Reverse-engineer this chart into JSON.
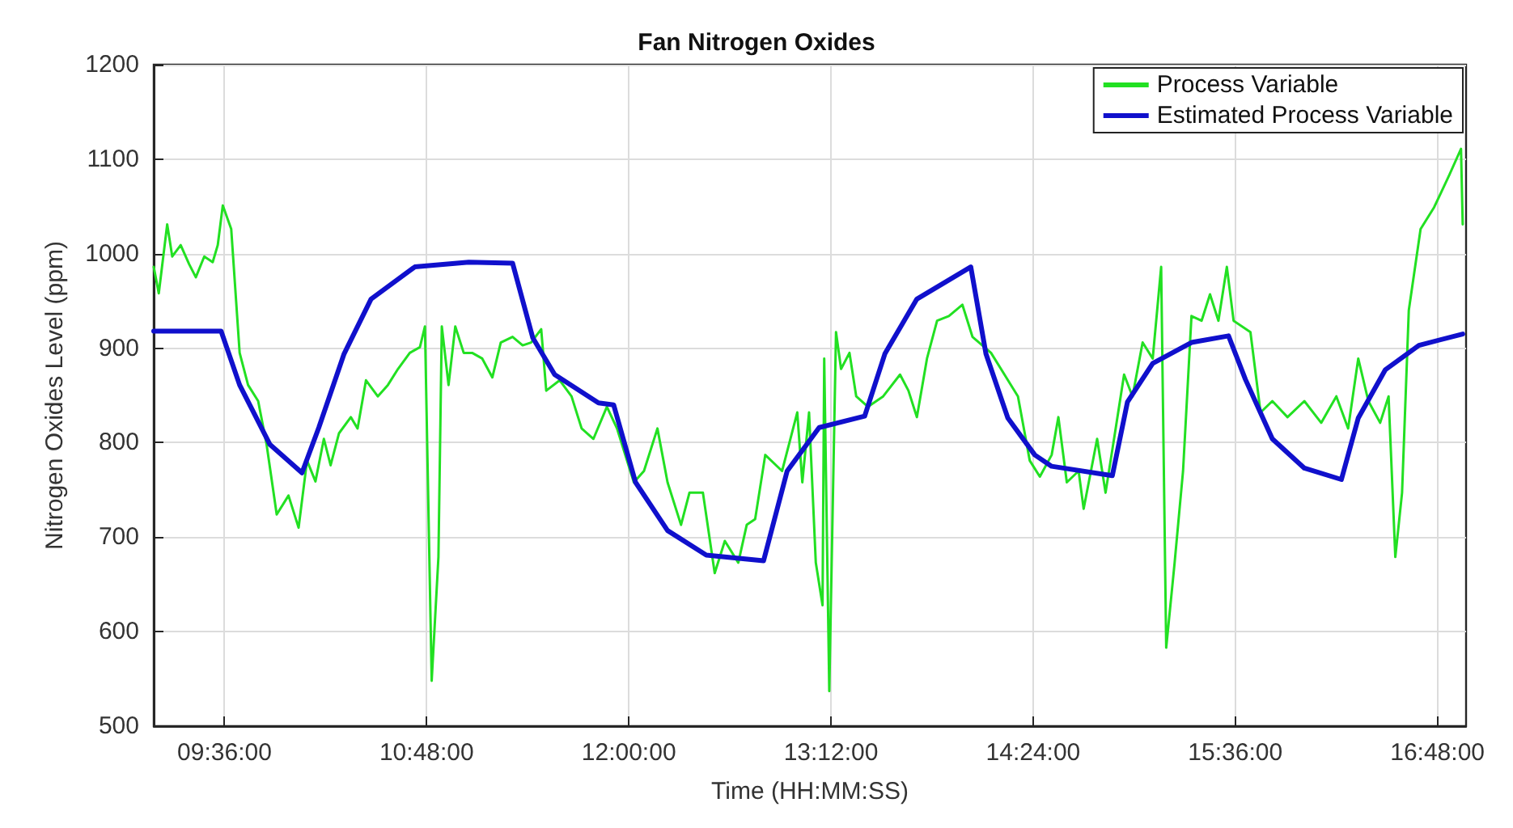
{
  "chart_data": {
    "type": "line",
    "title": "Fan Nitrogen Oxides",
    "xlabel": "Time (HH:MM:SS)",
    "ylabel": "Nitrogen Oxides Level (ppm)",
    "xlim": [
      9.18,
      16.97
    ],
    "ylim": [
      500,
      1200
    ],
    "xticks": [
      {
        "value": 9.6,
        "label": "09:36:00"
      },
      {
        "value": 10.8,
        "label": "10:48:00"
      },
      {
        "value": 12,
        "label": "12:00:00"
      },
      {
        "value": 13.2,
        "label": "13:12:00"
      },
      {
        "value": 14.4,
        "label": "14:24:00"
      },
      {
        "value": 15.6,
        "label": "15:36:00"
      },
      {
        "value": 16.8,
        "label": "16:48:00"
      }
    ],
    "yticks": [
      500,
      600,
      700,
      800,
      900,
      1000,
      1100,
      1200
    ],
    "grid": true,
    "legend": "top right",
    "marker": "none",
    "line_style": "solid",
    "series": [
      {
        "name": "Process Variable",
        "color": "#22e022",
        "x": [
          9.18,
          9.21,
          9.26,
          9.29,
          9.34,
          9.39,
          9.43,
          9.48,
          9.53,
          9.56,
          9.59,
          9.64,
          9.69,
          9.74,
          9.8,
          9.85,
          9.91,
          9.98,
          10.04,
          10.09,
          10.14,
          10.19,
          10.23,
          10.28,
          10.35,
          10.39,
          10.44,
          10.51,
          10.57,
          10.63,
          10.7,
          10.76,
          10.79,
          10.83,
          10.87,
          10.89,
          10.93,
          10.97,
          11.02,
          11.07,
          11.13,
          11.19,
          11.24,
          11.31,
          11.37,
          11.42,
          11.48,
          11.51,
          11.59,
          11.66,
          11.72,
          11.79,
          11.87,
          11.93,
          12.03,
          12.09,
          12.17,
          12.23,
          12.31,
          12.36,
          12.44,
          12.51,
          12.57,
          12.65,
          12.7,
          12.75,
          12.81,
          12.91,
          13.0,
          13.03,
          13.07,
          13.11,
          13.15,
          13.16,
          13.19,
          13.23,
          13.26,
          13.31,
          13.35,
          13.42,
          13.51,
          13.61,
          13.66,
          13.71,
          13.77,
          13.83,
          13.9,
          13.98,
          14.04,
          14.15,
          14.23,
          14.31,
          14.38,
          14.44,
          14.51,
          14.55,
          14.6,
          14.67,
          14.7,
          14.78,
          14.83,
          14.89,
          14.94,
          14.99,
          15.05,
          15.11,
          15.16,
          15.19,
          15.24,
          15.29,
          15.34,
          15.4,
          15.45,
          15.5,
          15.55,
          15.59,
          15.69,
          15.75,
          15.82,
          15.91,
          16.01,
          16.11,
          16.2,
          16.27,
          16.33,
          16.39,
          16.46,
          16.51,
          16.55,
          16.59,
          16.63,
          16.7,
          16.78,
          16.87,
          16.94,
          16.95
        ],
        "values": [
          986,
          958,
          1031,
          997,
          1009,
          989,
          975,
          997,
          991,
          1009,
          1051,
          1026,
          895,
          861,
          844,
          798,
          724,
          744,
          710,
          781,
          759,
          804,
          776,
          810,
          827,
          815,
          866,
          849,
          861,
          878,
          895,
          901,
          923,
          548,
          679,
          923,
          861,
          923,
          895,
          895,
          889,
          869,
          906,
          912,
          903,
          906,
          920,
          855,
          866,
          849,
          815,
          804,
          838,
          815,
          758,
          770,
          815,
          758,
          713,
          747,
          747,
          662,
          696,
          673,
          713,
          719,
          787,
          770,
          832,
          758,
          832,
          673,
          628,
          889,
          537,
          917,
          878,
          895,
          849,
          838,
          849,
          872,
          855,
          827,
          889,
          929,
          934,
          946,
          912,
          895,
          872,
          849,
          781,
          764,
          787,
          827,
          758,
          770,
          730,
          804,
          747,
          815,
          872,
          849,
          906,
          889,
          986,
          583,
          673,
          770,
          934,
          929,
          957,
          929,
          986,
          929,
          917,
          832,
          844,
          827,
          844,
          821,
          849,
          815,
          889,
          844,
          821,
          849,
          679,
          747,
          940,
          1026,
          1049,
          1083,
          1111,
          1031
        ]
      },
      {
        "name": "Estimated Process Variable",
        "color": "#1010cc",
        "x": [
          9.18,
          9.58,
          9.69,
          9.87,
          10.06,
          10.16,
          10.31,
          10.47,
          10.73,
          11.05,
          11.31,
          11.43,
          11.56,
          11.82,
          11.91,
          12.04,
          12.23,
          12.46,
          12.8,
          12.94,
          13.13,
          13.4,
          13.52,
          13.71,
          14.03,
          14.12,
          14.25,
          14.41,
          14.51,
          14.87,
          14.96,
          15.11,
          15.34,
          15.56,
          15.66,
          15.82,
          16.01,
          16.23,
          16.33,
          16.49,
          16.69,
          16.95
        ],
        "values": [
          918,
          918,
          861,
          798,
          768,
          816,
          894,
          952,
          986,
          991,
          990,
          911,
          872,
          842,
          840,
          758,
          707,
          681,
          675,
          770,
          816,
          828,
          894,
          952,
          986,
          894,
          826,
          787,
          775,
          765,
          843,
          884,
          906,
          913,
          867,
          804,
          773,
          761,
          826,
          877,
          903,
          915
        ]
      }
    ]
  }
}
